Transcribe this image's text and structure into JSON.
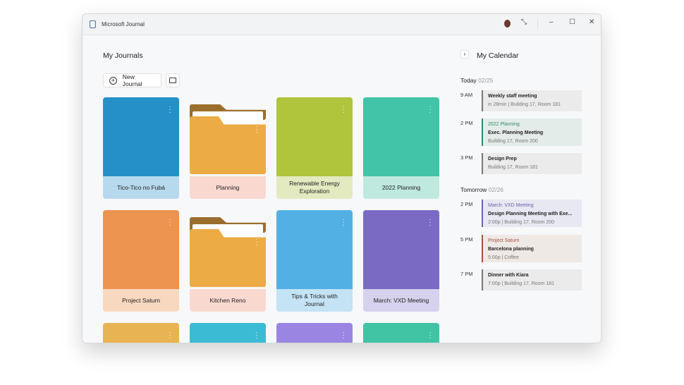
{
  "app": {
    "title": "Microsoft Journal"
  },
  "window_controls": {
    "minimize": "–",
    "maximize": "☐",
    "close": "✕",
    "restore": "⤡"
  },
  "journals": {
    "heading": "My Journals",
    "new_journal": "New Journal",
    "cards": [
      {
        "label": "Tico-Tico no Fubá",
        "type": "journal",
        "color": "#2590c8",
        "label_bg": "#b7d9ee"
      },
      {
        "label": "Planning",
        "type": "folder",
        "color": "#ecab45",
        "label_bg": "#f9d8cf"
      },
      {
        "label": "Renewable Energy Exploration",
        "type": "journal",
        "color": "#b0c43c",
        "label_bg": "#e3eac0"
      },
      {
        "label": "2022 Planning",
        "type": "journal",
        "color": "#41c4a7",
        "label_bg": "#bfe9df"
      },
      {
        "label": "Project Saturn",
        "type": "journal",
        "color": "#ec9450",
        "label_bg": "#f9d8c0"
      },
      {
        "label": "Kitchen Reno",
        "type": "folder",
        "color": "#ecab45",
        "label_bg": "#f9d8cf"
      },
      {
        "label": "Tips & Tricks with Journal",
        "type": "journal",
        "color": "#53b0e4",
        "label_bg": "#c4e3f4"
      },
      {
        "label": "March: VXD Meeting",
        "type": "journal",
        "color": "#7a6ac4",
        "label_bg": "#d6d1ec"
      },
      {
        "label": "",
        "type": "journal",
        "color": "#e8b352",
        "label_bg": ""
      },
      {
        "label": "",
        "type": "journal",
        "color": "#3bbcd4",
        "label_bg": ""
      },
      {
        "label": "",
        "type": "journal",
        "color": "#9b85e3",
        "label_bg": ""
      },
      {
        "label": "",
        "type": "journal",
        "color": "#40c4a3",
        "label_bg": ""
      }
    ]
  },
  "calendar": {
    "heading": "My Calendar",
    "today": {
      "label": "Today",
      "date": "02/25"
    },
    "tomorrow": {
      "label": "Tomorrow",
      "date": "02/26"
    },
    "events": [
      {
        "time": "9 AM",
        "tag": "",
        "title": "Weekly staff meeting",
        "detail": "in 28min | Building 17, Room 181",
        "accent": "#777777",
        "bg": "#ebebeb"
      },
      {
        "time": "2 PM",
        "tag": "2022 Planning",
        "title": "Exec. Planning Meeting",
        "detail": "Building 17, Room 200",
        "accent": "#2e8a6e",
        "bg": "#e4ecea"
      },
      {
        "time": "3 PM",
        "tag": "",
        "title": "Design Prep",
        "detail": "Building 17, Room 181",
        "accent": "#777777",
        "bg": "#ebebeb"
      },
      {
        "time": "2 PM",
        "tag": "March: VXD Meeting",
        "title": "Design Planning Meeting with Exe...",
        "detail": "2:00p | Building 17, Room 200",
        "accent": "#6b62b0",
        "bg": "#e8e8f2"
      },
      {
        "time": "5 PM",
        "tag": "Project Saturn",
        "title": "Barcelona planning",
        "detail": "5:00p | Coffee",
        "accent": "#a0553a",
        "bg": "#efe9e6"
      },
      {
        "time": "7 PM",
        "tag": "",
        "title": "Dinner with Kiara",
        "detail": "7:00p | Building 17, Room 181",
        "accent": "#777777",
        "bg": "#ebebeb"
      }
    ]
  }
}
